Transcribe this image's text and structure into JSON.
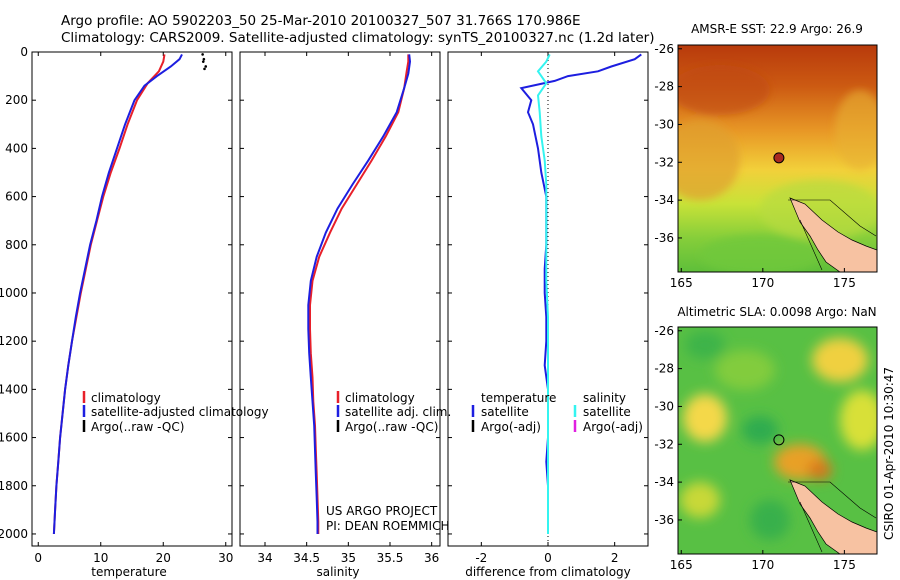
{
  "header": {
    "line1": "Argo profile: AO 5902203_50 25-Mar-2010 20100327_507 31.766S 170.986E",
    "line2": "Climatology: CARS2009. Satellite-adjusted climatology: synTS_20100327.nc (1.2d later)"
  },
  "side_label": "CSIRO 01-Apr-2010 10:30:47",
  "credit": [
    "US ARGO PROJECT",
    "PI: DEAN ROEMMICH"
  ],
  "colors": {
    "climatology": "#e8202a",
    "satellite": "#1d1ee0",
    "argo": "#000000",
    "sat_salinity": "#34f4f0",
    "argo_adj_salinity": "#e020e0"
  },
  "chart_data": [
    {
      "type": "line",
      "xlabel": "temperature",
      "ylabel": "",
      "xlim": [
        -1,
        31
      ],
      "ylim": [
        2050,
        0
      ],
      "xticks": [
        0,
        10,
        20,
        30
      ],
      "yticks": [
        0,
        200,
        400,
        600,
        800,
        1000,
        1200,
        1400,
        1600,
        1800,
        2000
      ],
      "legend": {
        "placement": "bottom-right",
        "entries": [
          "climatology",
          "satellite-adjusted climatology",
          "Argo(..raw -QC)"
        ]
      },
      "series": [
        {
          "name": "climatology",
          "color": "#e8202a",
          "points": [
            [
              20.2,
              10
            ],
            [
              20.0,
              40
            ],
            [
              19.3,
              80
            ],
            [
              17.5,
              130
            ],
            [
              15.8,
              200
            ],
            [
              14.3,
              300
            ],
            [
              13.0,
              400
            ],
            [
              11.6,
              500
            ],
            [
              10.4,
              600
            ],
            [
              9.4,
              700
            ],
            [
              8.4,
              800
            ],
            [
              7.6,
              900
            ],
            [
              6.8,
              1000
            ],
            [
              6.1,
              1100
            ],
            [
              5.4,
              1200
            ],
            [
              4.8,
              1300
            ],
            [
              4.3,
              1400
            ],
            [
              3.9,
              1500
            ],
            [
              3.5,
              1600
            ],
            [
              3.2,
              1700
            ],
            [
              2.9,
              1800
            ],
            [
              2.7,
              1900
            ],
            [
              2.5,
              2000
            ]
          ]
        },
        {
          "name": "satellite-adjusted climatology",
          "color": "#1d1ee0",
          "points": [
            [
              23.0,
              10
            ],
            [
              22.6,
              30
            ],
            [
              21.2,
              60
            ],
            [
              19.0,
              100
            ],
            [
              17.0,
              140
            ],
            [
              15.4,
              200
            ],
            [
              13.9,
              300
            ],
            [
              12.6,
              400
            ],
            [
              11.3,
              500
            ],
            [
              10.2,
              600
            ],
            [
              9.3,
              700
            ],
            [
              8.3,
              800
            ],
            [
              7.5,
              900
            ],
            [
              6.7,
              1000
            ],
            [
              6.0,
              1100
            ],
            [
              5.4,
              1200
            ],
            [
              4.8,
              1300
            ],
            [
              4.3,
              1400
            ],
            [
              3.9,
              1500
            ],
            [
              3.5,
              1600
            ],
            [
              3.2,
              1700
            ],
            [
              2.9,
              1800
            ],
            [
              2.7,
              1900
            ],
            [
              2.5,
              2000
            ]
          ]
        },
        {
          "name": "Argo(..raw -QC)",
          "color": "#000000",
          "points": [
            [
              26.3,
              10
            ],
            [
              26.5,
              30
            ],
            [
              26.4,
              40
            ],
            [
              26.8,
              60
            ],
            [
              26.6,
              70
            ]
          ]
        }
      ]
    },
    {
      "type": "line",
      "xlabel": "salinity",
      "ylabel": "",
      "xlim": [
        33.7,
        36.1
      ],
      "ylim": [
        2050,
        0
      ],
      "xticks": [
        34,
        34.5,
        35,
        35.5,
        36
      ],
      "legend": {
        "placement": "bottom-right",
        "entries": [
          "climatology",
          "satellite adj. clim.",
          "Argo(..raw -QC)"
        ]
      },
      "series": [
        {
          "name": "climatology",
          "color": "#e8202a",
          "points": [
            [
              35.72,
              10
            ],
            [
              35.72,
              40
            ],
            [
              35.7,
              80
            ],
            [
              35.67,
              150
            ],
            [
              35.6,
              250
            ],
            [
              35.45,
              350
            ],
            [
              35.28,
              450
            ],
            [
              35.1,
              550
            ],
            [
              34.92,
              650
            ],
            [
              34.78,
              750
            ],
            [
              34.65,
              850
            ],
            [
              34.57,
              950
            ],
            [
              34.54,
              1050
            ],
            [
              34.54,
              1150
            ],
            [
              34.55,
              1250
            ],
            [
              34.57,
              1350
            ],
            [
              34.58,
              1450
            ],
            [
              34.6,
              1550
            ],
            [
              34.61,
              1650
            ],
            [
              34.62,
              1750
            ],
            [
              34.63,
              1850
            ],
            [
              34.64,
              1950
            ],
            [
              34.64,
              2000
            ]
          ]
        },
        {
          "name": "satellite adj. clim.",
          "color": "#1d1ee0",
          "points": [
            [
              35.73,
              10
            ],
            [
              35.74,
              40
            ],
            [
              35.72,
              90
            ],
            [
              35.67,
              150
            ],
            [
              35.58,
              250
            ],
            [
              35.42,
              350
            ],
            [
              35.24,
              450
            ],
            [
              35.05,
              550
            ],
            [
              34.87,
              650
            ],
            [
              34.73,
              750
            ],
            [
              34.62,
              850
            ],
            [
              34.55,
              950
            ],
            [
              34.52,
              1050
            ],
            [
              34.52,
              1150
            ],
            [
              34.53,
              1250
            ],
            [
              34.55,
              1350
            ],
            [
              34.57,
              1450
            ],
            [
              34.59,
              1550
            ],
            [
              34.6,
              1650
            ],
            [
              34.61,
              1750
            ],
            [
              34.62,
              1850
            ],
            [
              34.63,
              1950
            ],
            [
              34.63,
              2000
            ]
          ]
        }
      ]
    },
    {
      "type": "line",
      "xlabel": "difference from climatology",
      "ylabel": "",
      "xlim": [
        -3,
        3
      ],
      "ylim": [
        2050,
        0
      ],
      "xticks": [
        -2,
        0,
        2
      ],
      "legend": {
        "placement": "bottom",
        "left_title": "temperature",
        "right_title": "salinity",
        "left_entries": [
          "satellite",
          "Argo(-adj)"
        ],
        "right_entries": [
          "satellite",
          "Argo(-adj)"
        ]
      },
      "series": [
        {
          "name": "temperature satellite",
          "color": "#1d1ee0",
          "points": [
            [
              2.8,
              10
            ],
            [
              2.6,
              30
            ],
            [
              1.9,
              60
            ],
            [
              1.5,
              80
            ],
            [
              0.6,
              100
            ],
            [
              0.2,
              120
            ],
            [
              -0.8,
              150
            ],
            [
              -0.5,
              200
            ],
            [
              -0.6,
              250
            ],
            [
              -0.45,
              300
            ],
            [
              -0.3,
              400
            ],
            [
              -0.2,
              500
            ],
            [
              -0.05,
              600
            ],
            [
              -0.05,
              700
            ],
            [
              -0.05,
              800
            ],
            [
              -0.1,
              900
            ],
            [
              -0.1,
              1000
            ],
            [
              -0.05,
              1100
            ],
            [
              -0.05,
              1200
            ],
            [
              -0.1,
              1300
            ],
            [
              0.0,
              1400
            ],
            [
              0.0,
              1500
            ],
            [
              0.0,
              1600
            ],
            [
              -0.05,
              1700
            ],
            [
              0.0,
              1800
            ],
            [
              0.0,
              1900
            ],
            [
              0.0,
              2000
            ]
          ]
        },
        {
          "name": "salinity satellite",
          "color": "#34f4f0",
          "points": [
            [
              0.05,
              10
            ],
            [
              -0.05,
              40
            ],
            [
              -0.3,
              80
            ],
            [
              -0.05,
              130
            ],
            [
              -0.3,
              180
            ],
            [
              -0.25,
              250
            ],
            [
              -0.2,
              350
            ],
            [
              -0.1,
              450
            ],
            [
              -0.05,
              550
            ],
            [
              -0.05,
              650
            ],
            [
              -0.05,
              750
            ],
            [
              -0.05,
              850
            ],
            [
              -0.05,
              950
            ],
            [
              0.0,
              1100
            ],
            [
              0.0,
              1300
            ],
            [
              0.0,
              1500
            ],
            [
              0.0,
              1700
            ],
            [
              0.0,
              1900
            ],
            [
              0.0,
              2000
            ]
          ]
        }
      ]
    },
    {
      "type": "heatmap",
      "title": "AMSR-E SST: 22.9  Argo: 26.9",
      "xlim": [
        164.8,
        177
      ],
      "ylim": [
        -37.8,
        -25.8
      ],
      "xticks": [
        165,
        170,
        175
      ],
      "yticks": [
        -26,
        -28,
        -30,
        -32,
        -34,
        -36
      ],
      "profile_location": [
        170.986,
        -31.766
      ]
    },
    {
      "type": "heatmap",
      "title": "Altimetric SLA: 0.0098  Argo: NaN",
      "xlim": [
        164.8,
        177
      ],
      "ylim": [
        -37.8,
        -25.8
      ],
      "xticks": [
        165,
        170,
        175
      ],
      "yticks": [
        -26,
        -28,
        -30,
        -32,
        -34,
        -36
      ],
      "profile_location": [
        170.986,
        -31.766
      ]
    }
  ]
}
